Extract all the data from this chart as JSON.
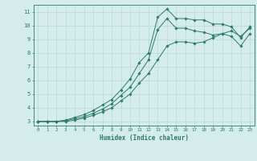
{
  "xlabel": "Humidex (Indice chaleur)",
  "background_color": "#d4ecea",
  "grid_color": "#b8d8d4",
  "line_color": "#2d7a70",
  "xlim": [
    -0.5,
    23.5
  ],
  "ylim": [
    2.7,
    11.5
  ],
  "xticks": [
    0,
    1,
    2,
    3,
    4,
    5,
    6,
    7,
    8,
    9,
    10,
    11,
    12,
    13,
    14,
    15,
    16,
    17,
    18,
    19,
    20,
    21,
    22,
    23
  ],
  "yticks": [
    3,
    4,
    5,
    6,
    7,
    8,
    9,
    10,
    11
  ],
  "line1": {
    "x": [
      0,
      1,
      2,
      3,
      4,
      5,
      6,
      7,
      8,
      9,
      10,
      11,
      12,
      13,
      14,
      15,
      16,
      17,
      18,
      19,
      20,
      21,
      22,
      23
    ],
    "y": [
      3.0,
      3.0,
      3.0,
      3.1,
      3.3,
      3.5,
      3.8,
      4.2,
      4.6,
      5.3,
      6.1,
      7.3,
      8.0,
      10.6,
      11.2,
      10.5,
      10.5,
      10.4,
      10.4,
      10.1,
      10.1,
      9.9,
      9.1,
      9.9
    ]
  },
  "line2": {
    "x": [
      0,
      1,
      2,
      3,
      4,
      5,
      6,
      7,
      8,
      9,
      10,
      11,
      12,
      13,
      14,
      15,
      16,
      17,
      18,
      19,
      20,
      21,
      22,
      23
    ],
    "y": [
      3.0,
      3.0,
      3.0,
      3.05,
      3.2,
      3.35,
      3.6,
      3.9,
      4.3,
      4.9,
      5.5,
      6.5,
      7.5,
      9.7,
      10.5,
      9.8,
      9.8,
      9.6,
      9.5,
      9.3,
      9.4,
      9.2,
      8.5,
      9.4
    ]
  },
  "line3": {
    "x": [
      0,
      1,
      2,
      3,
      4,
      5,
      6,
      7,
      8,
      9,
      10,
      11,
      12,
      13,
      14,
      15,
      16,
      17,
      18,
      19,
      20,
      21,
      22,
      23
    ],
    "y": [
      3.0,
      3.0,
      3.0,
      3.0,
      3.1,
      3.25,
      3.45,
      3.7,
      4.0,
      4.5,
      5.0,
      5.8,
      6.5,
      7.5,
      8.5,
      8.8,
      8.8,
      8.7,
      8.8,
      9.1,
      9.4,
      9.6,
      9.2,
      9.8
    ]
  }
}
